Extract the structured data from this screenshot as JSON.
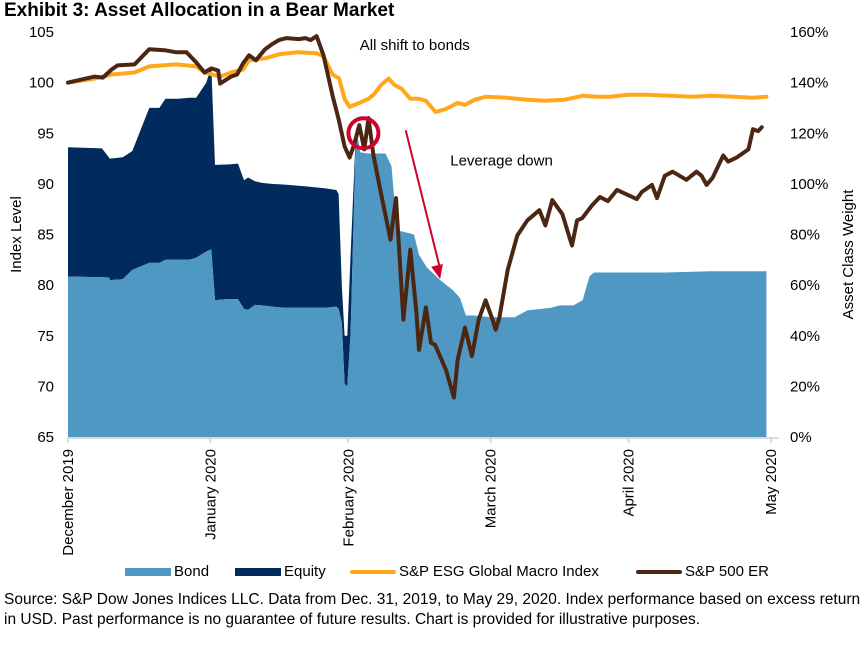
{
  "title": "Exhibit 3: Asset Allocation in a Bear Market",
  "source": "Source: S&P Dow Jones Indices LLC. Data from Dec. 31, 2019, to May 29, 2020. Index performance based on excess return in USD. Past performance is no guarantee of future results. Chart is provided for illustrative purposes.",
  "colors": {
    "bond": "#4f98c3",
    "equity": "#002b5c",
    "esg_macro": "#ffa81c",
    "sp500": "#4b2612",
    "annotation": "#d3012f",
    "axis": "#d9d9d9"
  },
  "chart_data": {
    "type": "area+line",
    "title": "Exhibit 3: Asset Allocation in a Bear Market",
    "x_unit": "days since Dec. 31, 2019",
    "xlim": [
      0,
      152
    ],
    "x_ticks": [
      {
        "x": 0,
        "label": "December 2019"
      },
      {
        "x": 31,
        "label": "January 2020"
      },
      {
        "x": 61,
        "label": "February 2020"
      },
      {
        "x": 92,
        "label": "March 2020"
      },
      {
        "x": 122,
        "label": "April 2020"
      },
      {
        "x": 153,
        "label": "May 2020"
      }
    ],
    "ylabel_left": "Index Level",
    "ylim_left": [
      65,
      105
    ],
    "y_ticks_left": [
      "65",
      "70",
      "75",
      "80",
      "85",
      "90",
      "95",
      "100",
      "105"
    ],
    "ylabel_right": "Asset Class Weight",
    "ylim_right": [
      0,
      160
    ],
    "y_ticks_right": [
      "0%",
      "20%",
      "40%",
      "60%",
      "80%",
      "100%",
      "120%",
      "140%",
      "160%"
    ],
    "legend_position": "bottom",
    "legend": [
      "Bond",
      "Equity",
      "S&P ESG Global Macro Index",
      "S&P 500 ER"
    ],
    "series": [
      {
        "name": "Bond",
        "type": "area",
        "axis": "right",
        "points": [
          [
            0,
            63.4
          ],
          [
            7.4,
            63.1
          ],
          [
            9.1,
            62.0
          ],
          [
            11.9,
            62.3
          ],
          [
            9,
            63
          ],
          [
            14,
            66
          ],
          [
            17.7,
            68.8
          ],
          [
            19.9,
            68.8
          ],
          [
            21.2,
            70.0
          ],
          [
            24.0,
            70.0
          ],
          [
            26.4,
            70.0
          ],
          [
            27.9,
            70.8
          ],
          [
            30.1,
            73.3
          ],
          [
            31.2,
            74.1
          ],
          [
            32.0,
            54.1
          ],
          [
            35.1,
            54.5
          ],
          [
            37.0,
            54.4
          ],
          [
            38.3,
            50.6
          ],
          [
            39.2,
            50.2
          ],
          [
            40.7,
            52.2
          ],
          [
            42.2,
            52.0
          ],
          [
            44.4,
            51.5
          ],
          [
            47.2,
            51.1
          ],
          [
            51.5,
            51.1
          ],
          [
            56.1,
            51.1
          ],
          [
            58.4,
            51.5
          ],
          [
            58.9,
            50.6
          ],
          [
            59.6,
            45.3
          ],
          [
            60.2,
            21.0
          ],
          [
            60.8,
            20.0
          ],
          [
            61.5,
            41.0
          ],
          [
            62.7,
            122.5
          ],
          [
            63.6,
            112.5
          ],
          [
            65.2,
            112.0
          ],
          [
            69.1,
            112.0
          ],
          [
            70.4,
            107.0
          ],
          [
            71.2,
            90.0
          ],
          [
            72.1,
            81.5
          ],
          [
            75.3,
            80.0
          ],
          [
            76.4,
            72.0
          ],
          [
            78.1,
            67.0
          ],
          [
            81.0,
            62.0
          ],
          [
            83.8,
            58.0
          ],
          [
            85.3,
            55.0
          ],
          [
            86.6,
            48.0
          ],
          [
            88.5,
            48.0
          ],
          [
            92.0,
            47.3
          ],
          [
            95.7,
            47.3
          ],
          [
            97.2,
            47.3
          ],
          [
            100.0,
            50.0
          ],
          [
            105.0,
            51.0
          ],
          [
            107.0,
            52.0
          ],
          [
            110.0,
            52.0
          ],
          [
            112.0,
            54.0
          ],
          [
            113.5,
            63.5
          ],
          [
            114.5,
            65.0
          ],
          [
            118.0,
            65.0
          ],
          [
            130.0,
            65.0
          ],
          [
            140.0,
            65.5
          ],
          [
            152.0,
            65.5
          ]
        ]
      },
      {
        "name": "Equity",
        "type": "area",
        "axis": "right",
        "stacked_top": [
          [
            0,
            114.5
          ],
          [
            7.4,
            114.0
          ],
          [
            9.1,
            110.0
          ],
          [
            11.9,
            110.5
          ],
          [
            14,
            113
          ],
          [
            17.7,
            130.0
          ],
          [
            19.9,
            130.0
          ],
          [
            21.2,
            133.6
          ],
          [
            24.0,
            133.6
          ],
          [
            26.4,
            134.0
          ],
          [
            27.9,
            134.0
          ],
          [
            30.1,
            140.0
          ],
          [
            31.2,
            146.5
          ],
          [
            32.0,
            107.5
          ],
          [
            35.1,
            107.7
          ],
          [
            37.0,
            108.0
          ],
          [
            38.3,
            101.4
          ],
          [
            39.2,
            102.5
          ],
          [
            40.7,
            101.0
          ],
          [
            42.2,
            100.4
          ],
          [
            44.4,
            100.0
          ],
          [
            47.2,
            99.7
          ],
          [
            51.5,
            99.1
          ],
          [
            56.1,
            98.2
          ],
          [
            58.4,
            97.6
          ],
          [
            58.9,
            96.0
          ],
          [
            59.6,
            60.0
          ],
          [
            60.2,
            40.0
          ],
          [
            60.8,
            40.0
          ],
          [
            61.5,
            72.0
          ],
          [
            62.7,
            122.5
          ]
        ]
      },
      {
        "name": "S&P ESG Global Macro Index",
        "type": "line",
        "axis": "left",
        "points": [
          [
            0,
            100.0
          ],
          [
            5.8,
            100.4
          ],
          [
            9.5,
            100.8
          ],
          [
            14.5,
            101.0
          ],
          [
            17.7,
            101.6
          ],
          [
            23.6,
            101.8
          ],
          [
            27.9,
            101.6
          ],
          [
            29.7,
            101.0
          ],
          [
            33.1,
            100.6
          ],
          [
            35.5,
            101.0
          ],
          [
            38.1,
            101.3
          ],
          [
            39.4,
            102.2
          ],
          [
            42.9,
            102.4
          ],
          [
            45.9,
            102.8
          ],
          [
            50.0,
            103.0
          ],
          [
            54.1,
            102.9
          ],
          [
            55.6,
            102.6
          ],
          [
            57.6,
            100.8
          ],
          [
            59.0,
            100.4
          ],
          [
            60.2,
            98.4
          ],
          [
            61.3,
            97.6
          ],
          [
            63.4,
            98.0
          ],
          [
            65.4,
            98.4
          ],
          [
            66.5,
            98.8
          ],
          [
            68.2,
            99.8
          ],
          [
            69.8,
            100.4
          ],
          [
            71.0,
            99.8
          ],
          [
            72.6,
            99.4
          ],
          [
            74.5,
            98.4
          ],
          [
            76.4,
            98.4
          ],
          [
            77.9,
            98.2
          ],
          [
            80.0,
            97.1
          ],
          [
            82.3,
            97.4
          ],
          [
            84.8,
            98.0
          ],
          [
            86.4,
            97.8
          ],
          [
            88.5,
            98.3
          ],
          [
            90.9,
            98.6
          ],
          [
            95.7,
            98.5
          ],
          [
            100.0,
            98.3
          ],
          [
            103.9,
            98.2
          ],
          [
            108.0,
            98.3
          ],
          [
            112.0,
            98.7
          ],
          [
            115.0,
            98.6
          ],
          [
            118.0,
            98.6
          ],
          [
            122.0,
            98.8
          ],
          [
            126.0,
            98.8
          ],
          [
            131.0,
            98.7
          ],
          [
            136.0,
            98.6
          ],
          [
            140.0,
            98.7
          ],
          [
            145.0,
            98.6
          ],
          [
            149.0,
            98.5
          ],
          [
            152.0,
            98.6
          ]
        ]
      },
      {
        "name": "S&P 500 ER",
        "type": "line",
        "axis": "left",
        "points": [
          [
            0,
            100.0
          ],
          [
            5.8,
            100.6
          ],
          [
            7.6,
            100.5
          ],
          [
            9.5,
            101.3
          ],
          [
            10.8,
            101.7
          ],
          [
            14.5,
            101.8
          ],
          [
            17.7,
            103.3
          ],
          [
            21.0,
            103.2
          ],
          [
            23.6,
            103.0
          ],
          [
            25.8,
            103.0
          ],
          [
            27.9,
            102.0
          ],
          [
            29.7,
            101.0
          ],
          [
            31.2,
            101.4
          ],
          [
            32.7,
            101.2
          ],
          [
            33.1,
            99.9
          ],
          [
            35.5,
            100.6
          ],
          [
            36.8,
            100.8
          ],
          [
            38.1,
            101.9
          ],
          [
            39.4,
            102.7
          ],
          [
            40.9,
            102.2
          ],
          [
            42.9,
            103.3
          ],
          [
            44.4,
            103.8
          ],
          [
            45.9,
            104.2
          ],
          [
            47.6,
            104.4
          ],
          [
            50.2,
            104.3
          ],
          [
            51.7,
            104.4
          ],
          [
            52.8,
            104.2
          ],
          [
            54.1,
            104.6
          ],
          [
            55.6,
            102.7
          ],
          [
            57.6,
            98.7
          ],
          [
            58.9,
            96.4
          ],
          [
            60.2,
            93.7
          ],
          [
            61.3,
            92.6
          ],
          [
            62.3,
            93.9
          ],
          [
            63.4,
            95.8
          ],
          [
            64.5,
            93.4
          ],
          [
            65.4,
            96.5
          ],
          [
            66.5,
            92.8
          ],
          [
            68.2,
            88.9
          ],
          [
            70.2,
            84.5
          ],
          [
            71.4,
            88.6
          ],
          [
            73.0,
            76.6
          ],
          [
            74.5,
            83.5
          ],
          [
            75.8,
            77.4
          ],
          [
            76.4,
            73.6
          ],
          [
            77.9,
            77.8
          ],
          [
            79.0,
            74.3
          ],
          [
            79.9,
            74.1
          ],
          [
            82.3,
            71.6
          ],
          [
            84.0,
            68.9
          ],
          [
            84.8,
            72.6
          ],
          [
            86.4,
            75.8
          ],
          [
            87.9,
            73.0
          ],
          [
            89.4,
            76.6
          ],
          [
            90.9,
            78.5
          ],
          [
            92.4,
            76.6
          ],
          [
            93.1,
            75.6
          ],
          [
            93.9,
            76.8
          ],
          [
            95.7,
            81.5
          ],
          [
            97.8,
            84.9
          ],
          [
            100.0,
            86.4
          ],
          [
            102.6,
            87.4
          ],
          [
            103.9,
            85.9
          ],
          [
            105.4,
            88.4
          ],
          [
            107.6,
            87.0
          ],
          [
            109.7,
            83.9
          ],
          [
            110.8,
            86.4
          ],
          [
            111.9,
            86.6
          ],
          [
            114.1,
            87.9
          ],
          [
            115.8,
            88.7
          ],
          [
            117.5,
            88.3
          ],
          [
            119.5,
            89.4
          ],
          [
            123.8,
            88.5
          ],
          [
            124.9,
            89.2
          ],
          [
            127.1,
            89.9
          ],
          [
            128.2,
            88.6
          ],
          [
            129.9,
            90.8
          ],
          [
            131.6,
            91.2
          ],
          [
            134.6,
            90.4
          ],
          [
            136.8,
            91.2
          ],
          [
            137.9,
            90.8
          ],
          [
            139.0,
            89.9
          ],
          [
            140.3,
            90.6
          ],
          [
            142.6,
            92.8
          ],
          [
            143.7,
            92.2
          ],
          [
            145.5,
            92.6
          ],
          [
            148.1,
            93.4
          ],
          [
            149.1,
            95.4
          ],
          [
            150.2,
            95.2
          ],
          [
            151.0,
            95.6
          ]
        ]
      }
    ],
    "annotations": [
      {
        "text": "All shift to bonds",
        "x": 63.5,
        "y": 103.2
      },
      {
        "text": "Leverage down",
        "x": 83.2,
        "y": 91.8
      }
    ],
    "highlight_circle": {
      "x": 64.3,
      "y": 95.0
    },
    "arrow": {
      "from": [
        73.5,
        95.3
      ],
      "to": [
        81.0,
        80.6
      ]
    }
  }
}
